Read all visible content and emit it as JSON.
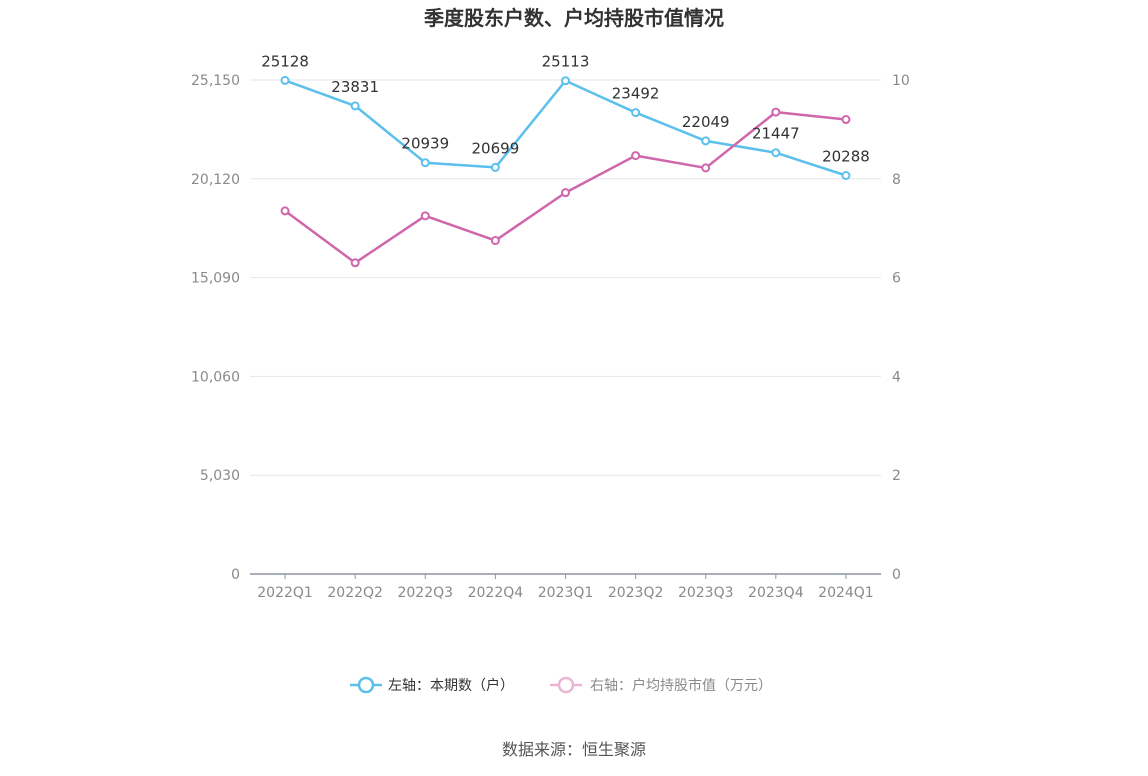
{
  "chart_data": {
    "type": "line",
    "title": "季度股东户数、户均持股市值情况",
    "categories": [
      "2022Q1",
      "2022Q2",
      "2022Q3",
      "2022Q4",
      "2023Q1",
      "2023Q2",
      "2023Q3",
      "2023Q4",
      "2024Q1"
    ],
    "left_axis": {
      "ticks": [
        "0",
        "5,030",
        "10,060",
        "15,090",
        "20,120",
        "25,150"
      ],
      "ylim": [
        0,
        25150
      ]
    },
    "right_axis": {
      "ticks": [
        "0",
        "2",
        "4",
        "6",
        "8",
        "10"
      ],
      "ylim": [
        0,
        10
      ]
    },
    "series": [
      {
        "name": "左轴：本期数（户）",
        "axis": "left",
        "color": "#5bc0eb",
        "values": [
          25128,
          23831,
          20939,
          20699,
          25113,
          23492,
          22049,
          21447,
          20288
        ],
        "labels": [
          "25128",
          "23831",
          "20939",
          "20699",
          "25113",
          "23492",
          "22049",
          "21447",
          "20288"
        ]
      },
      {
        "name": "右轴：户均持股市值（万元）",
        "axis": "right",
        "color": "#d066ab",
        "values": [
          7.35,
          6.3,
          7.25,
          6.75,
          7.72,
          8.47,
          8.22,
          9.35,
          9.2
        ]
      }
    ],
    "grid": true,
    "legend_position": "bottom"
  },
  "source_text": "数据来源：恒生聚源"
}
